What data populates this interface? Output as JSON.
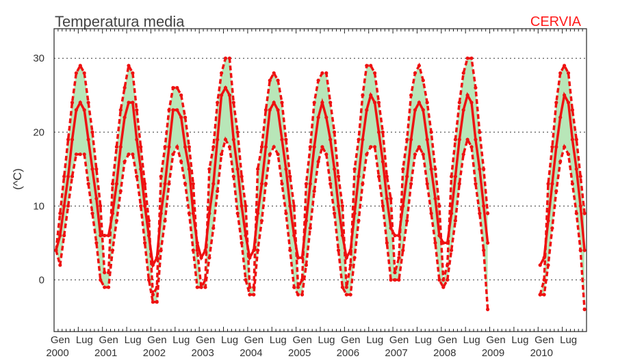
{
  "chart_data": {
    "type": "line",
    "title": "Temperatura media",
    "station": "CERVIA",
    "ylabel": "(^C)",
    "ylim": [
      -7,
      34
    ],
    "yticks": [
      0,
      10,
      20,
      30
    ],
    "grid": "horizontal dotted",
    "x_start": "2000-01",
    "x_end": "2010-12",
    "month_labels": [
      "Gen",
      "Lug"
    ],
    "year_labels": [
      "2000",
      "2001",
      "2002",
      "2003",
      "2004",
      "2005",
      "2006",
      "2007",
      "2008",
      "2009",
      "2010"
    ],
    "series": [
      {
        "values": [
          4,
          6,
          10,
          14,
          19,
          23,
          24,
          23,
          19,
          15,
          11,
          6,
          6,
          6,
          9,
          13,
          18,
          22,
          24,
          24,
          19,
          15,
          10,
          6,
          2,
          3,
          9,
          13,
          18,
          23,
          23,
          22,
          18,
          15,
          9,
          5,
          3,
          4,
          9,
          13,
          19,
          25,
          26,
          25,
          19,
          15,
          10,
          6,
          3,
          4,
          9,
          13,
          18,
          23,
          24,
          23,
          19,
          15,
          10,
          6,
          3,
          3,
          8,
          13,
          18,
          22,
          24,
          22,
          19,
          15,
          10,
          6,
          3,
          4,
          9,
          14,
          19,
          23,
          25,
          24,
          20,
          16,
          11,
          7,
          6,
          6,
          10,
          14,
          19,
          23,
          24,
          23,
          19,
          15,
          11,
          6,
          5,
          5,
          9,
          14,
          19,
          23,
          25,
          24,
          19,
          15,
          10,
          5,
          null,
          null,
          null,
          null,
          null,
          null,
          null,
          null,
          null,
          null,
          null,
          null,
          2,
          3,
          8,
          13,
          18,
          22,
          25,
          24,
          19,
          15,
          10,
          4
        ]
      },
      {
        "values": [
          4,
          9,
          14,
          19,
          24,
          28,
          29,
          28,
          24,
          20,
          15,
          10,
          1,
          1,
          13,
          18,
          23,
          26,
          29,
          28,
          23,
          18,
          13,
          8,
          -2,
          -1,
          14,
          18,
          23,
          26,
          26,
          25,
          22,
          18,
          13,
          4,
          -1,
          0,
          15,
          18,
          24,
          28,
          30,
          30,
          24,
          20,
          14,
          10,
          -1,
          -1,
          15,
          18,
          23,
          27,
          28,
          27,
          24,
          19,
          14,
          10,
          -1,
          0,
          13,
          18,
          24,
          27,
          28,
          28,
          24,
          20,
          14,
          10,
          -1,
          2,
          15,
          19,
          25,
          29,
          29,
          28,
          24,
          20,
          14,
          11,
          1,
          3,
          15,
          19,
          25,
          28,
          29,
          27,
          24,
          20,
          15,
          10,
          0,
          2,
          14,
          19,
          24,
          28,
          30,
          30,
          26,
          20,
          15,
          9,
          null,
          null,
          null,
          null,
          null,
          null,
          null,
          null,
          null,
          null,
          null,
          null,
          -2,
          0,
          13,
          18,
          24,
          28,
          29,
          28,
          23,
          19,
          14,
          9
        ]
      },
      {
        "values": [
          4,
          2,
          6,
          10,
          14,
          17,
          17,
          17,
          13,
          9,
          5,
          0,
          -1,
          -1,
          4,
          8,
          12,
          16,
          17,
          17,
          14,
          10,
          5,
          0,
          -3,
          -3,
          4,
          8,
          13,
          17,
          18,
          16,
          13,
          9,
          4,
          -1,
          -1,
          -1,
          3,
          7,
          12,
          17,
          19,
          18,
          14,
          9,
          5,
          0,
          -2,
          -2,
          4,
          8,
          13,
          17,
          18,
          17,
          13,
          9,
          4,
          -1,
          -2,
          -2,
          2,
          7,
          12,
          16,
          18,
          17,
          13,
          9,
          4,
          -1,
          -2,
          -2,
          3,
          8,
          13,
          17,
          18,
          18,
          14,
          10,
          5,
          0,
          0,
          0,
          4,
          8,
          13,
          17,
          18,
          17,
          13,
          9,
          5,
          0,
          -1,
          0,
          4,
          8,
          13,
          17,
          19,
          18,
          13,
          9,
          4,
          -4,
          null,
          null,
          null,
          null,
          null,
          null,
          null,
          null,
          null,
          null,
          null,
          null,
          -2,
          -2,
          2,
          7,
          12,
          16,
          18,
          17,
          13,
          9,
          4,
          -4
        ]
      }
    ]
  }
}
